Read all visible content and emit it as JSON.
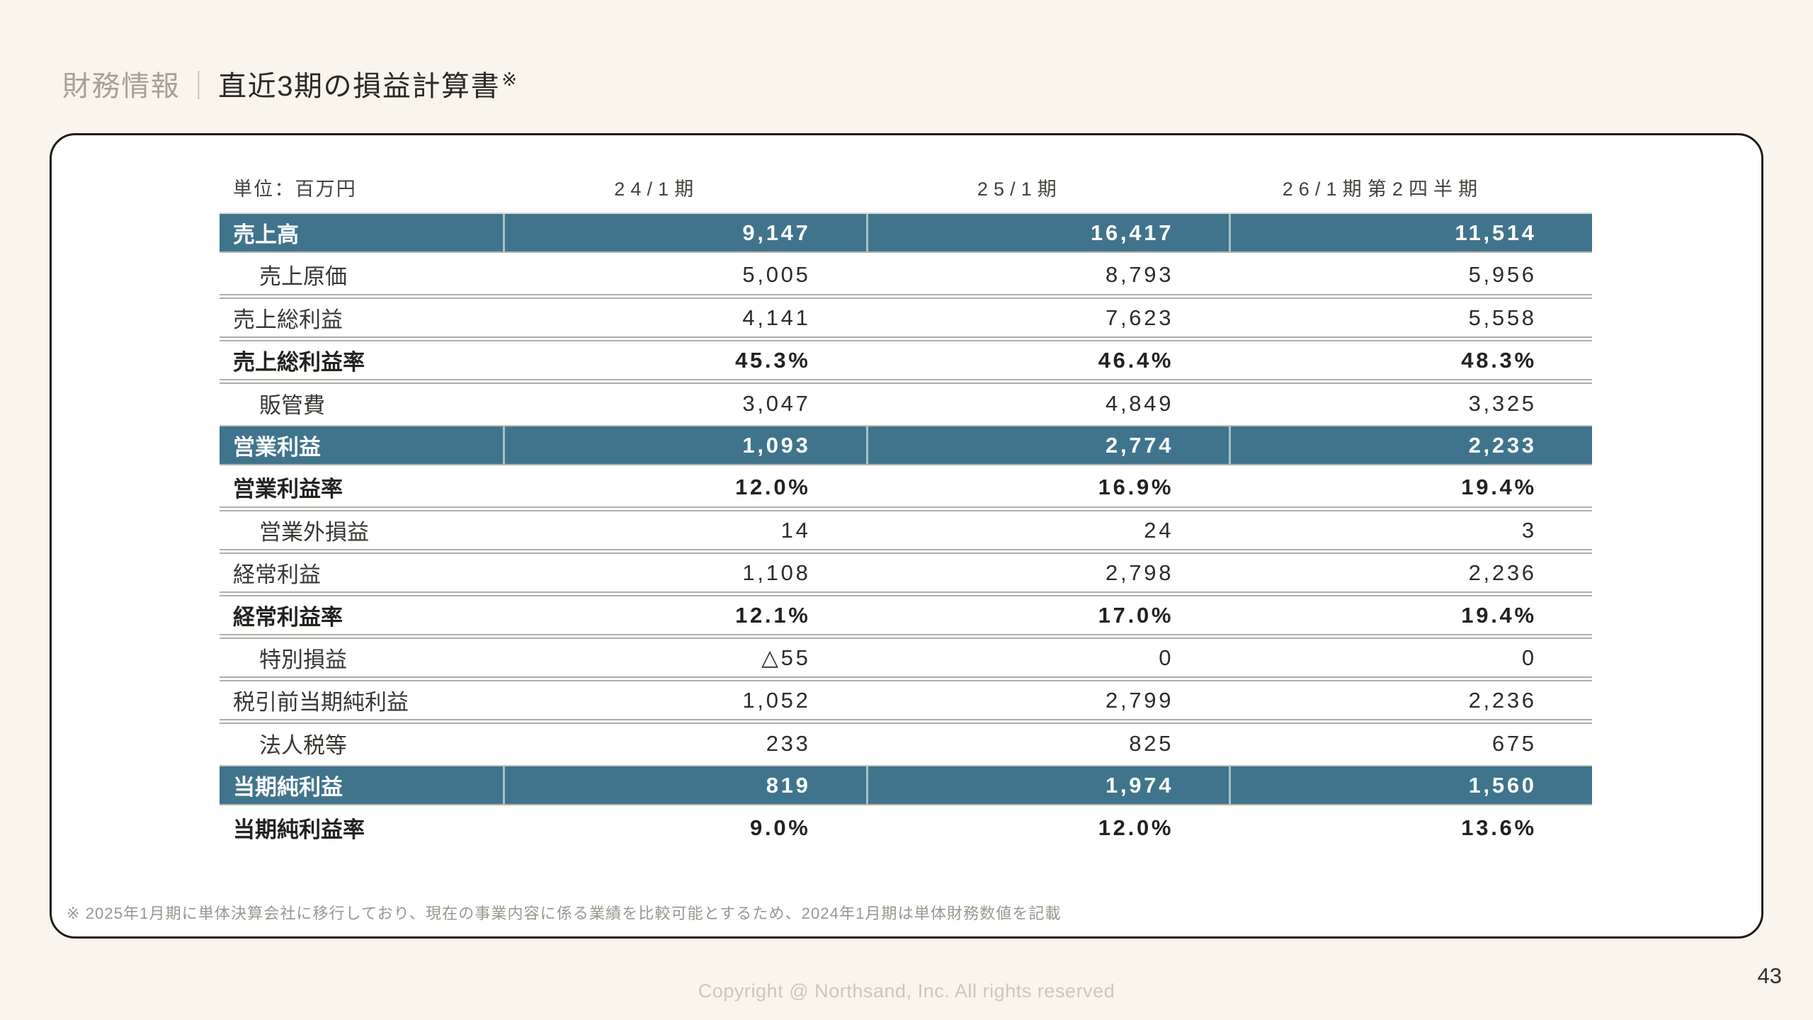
{
  "page": {
    "title_section": "財務情報",
    "title_separator": "｜",
    "title_main": "直近3期の損益計算書",
    "title_note_mark": "※",
    "copyright": "Copyright @ Northsand, Inc. All rights reserved",
    "page_number": "43"
  },
  "colors": {
    "background": "#f9f5ec",
    "accent_teal": "#40748c",
    "card_border": "#1e1c19",
    "row_separator": "#b2aea7"
  },
  "table": {
    "unit_label": "単位：百万円",
    "columns": [
      "24/1期",
      "25/1期",
      "26/1期第2四半期"
    ],
    "rows": [
      {
        "label": "売上高",
        "values": [
          "9,147",
          "16,417",
          "11,514"
        ],
        "style": "highlight",
        "indent": false
      },
      {
        "label": "売上原価",
        "values": [
          "5,005",
          "8,793",
          "5,956"
        ],
        "style": "normal",
        "indent": true
      },
      {
        "label": "売上総利益",
        "values": [
          "4,141",
          "7,623",
          "5,558"
        ],
        "style": "normal",
        "indent": false
      },
      {
        "label": "売上総利益率",
        "values": [
          "45.3%",
          "46.4%",
          "48.3%"
        ],
        "style": "bold",
        "indent": false
      },
      {
        "label": "販管費",
        "values": [
          "3,047",
          "4,849",
          "3,325"
        ],
        "style": "normal",
        "indent": true
      },
      {
        "label": "営業利益",
        "values": [
          "1,093",
          "2,774",
          "2,233"
        ],
        "style": "highlight",
        "indent": false
      },
      {
        "label": "営業利益率",
        "values": [
          "12.0%",
          "16.9%",
          "19.4%"
        ],
        "style": "bold",
        "indent": false
      },
      {
        "label": "営業外損益",
        "values": [
          "14",
          "24",
          "3"
        ],
        "style": "normal",
        "indent": true
      },
      {
        "label": "経常利益",
        "values": [
          "1,108",
          "2,798",
          "2,236"
        ],
        "style": "normal",
        "indent": false
      },
      {
        "label": "経常利益率",
        "values": [
          "12.1%",
          "17.0%",
          "19.4%"
        ],
        "style": "bold",
        "indent": false
      },
      {
        "label": "特別損益",
        "values": [
          "△55",
          "0",
          "0"
        ],
        "style": "normal",
        "indent": true
      },
      {
        "label": "税引前当期純利益",
        "values": [
          "1,052",
          "2,799",
          "2,236"
        ],
        "style": "normal",
        "indent": false
      },
      {
        "label": "法人税等",
        "values": [
          "233",
          "825",
          "675"
        ],
        "style": "normal",
        "indent": true
      },
      {
        "label": "当期純利益",
        "values": [
          "819",
          "1,974",
          "1,560"
        ],
        "style": "highlight",
        "indent": false
      },
      {
        "label": "当期純利益率",
        "values": [
          "9.0%",
          "12.0%",
          "13.6%"
        ],
        "style": "bold",
        "indent": false
      }
    ]
  },
  "footnote": "※ 2025年1月期に単体決算会社に移行しており、現在の事業内容に係る業績を比較可能とするため、2024年1月期は単体財務数値を記載"
}
